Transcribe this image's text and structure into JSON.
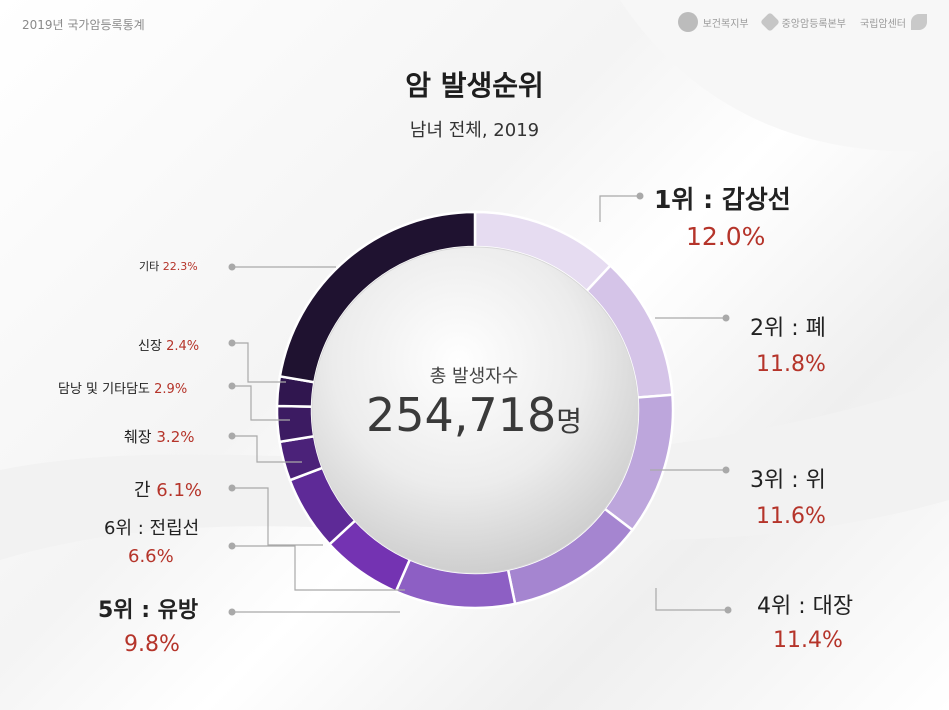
{
  "header": {
    "title": "2019년 국가암등록통계"
  },
  "logos": [
    {
      "name": "보건복지부"
    },
    {
      "name": "중앙암등록본부"
    },
    {
      "name": "국립암센터"
    }
  ],
  "page": {
    "title": "암 발생순위",
    "subtitle": "남녀 전체, 2019"
  },
  "center": {
    "label": "총 발생자수",
    "value": "254,718",
    "unit": "명"
  },
  "colors": {
    "accent_pct": "#b5342a",
    "ring_light": "#e6dcf1",
    "ring_dark": "#1f1230"
  },
  "chart_data": {
    "type": "pie",
    "style": "donut",
    "title": "암 발생순위",
    "subtitle": "남녀 전체, 2019",
    "total": 254718,
    "unit": "명",
    "slices": [
      {
        "label": "1위 : 갑상선",
        "value": 12.0,
        "pct_text": "12.0%",
        "color": "#e6dcf1"
      },
      {
        "label": "2위 : 폐",
        "value": 11.8,
        "pct_text": "11.8%",
        "color": "#d5c4e8"
      },
      {
        "label": "3위 : 위",
        "value": 11.6,
        "pct_text": "11.6%",
        "color": "#bda6dc"
      },
      {
        "label": "4위 : 대장",
        "value": 11.4,
        "pct_text": "11.4%",
        "color": "#a585d0"
      },
      {
        "label": "5위 : 유방",
        "value": 9.8,
        "pct_text": "9.8%",
        "color": "#8d5fc4"
      },
      {
        "label": "6위 : 전립선",
        "value": 6.6,
        "pct_text": "6.6%",
        "color": "#7433b2"
      },
      {
        "label": "간",
        "value": 6.1,
        "pct_text": "6.1%",
        "color": "#5e2a97"
      },
      {
        "label": "췌장",
        "value": 3.2,
        "pct_text": "3.2%",
        "color": "#4b2279"
      },
      {
        "label": "담낭 및 기타담도",
        "value": 2.9,
        "pct_text": "2.9%",
        "color": "#3c1b62"
      },
      {
        "label": "신장",
        "value": 2.4,
        "pct_text": "2.4%",
        "color": "#30164f"
      },
      {
        "label": "기타",
        "value": 22.3,
        "pct_text": "22.3%",
        "color": "#1f1230"
      }
    ]
  }
}
